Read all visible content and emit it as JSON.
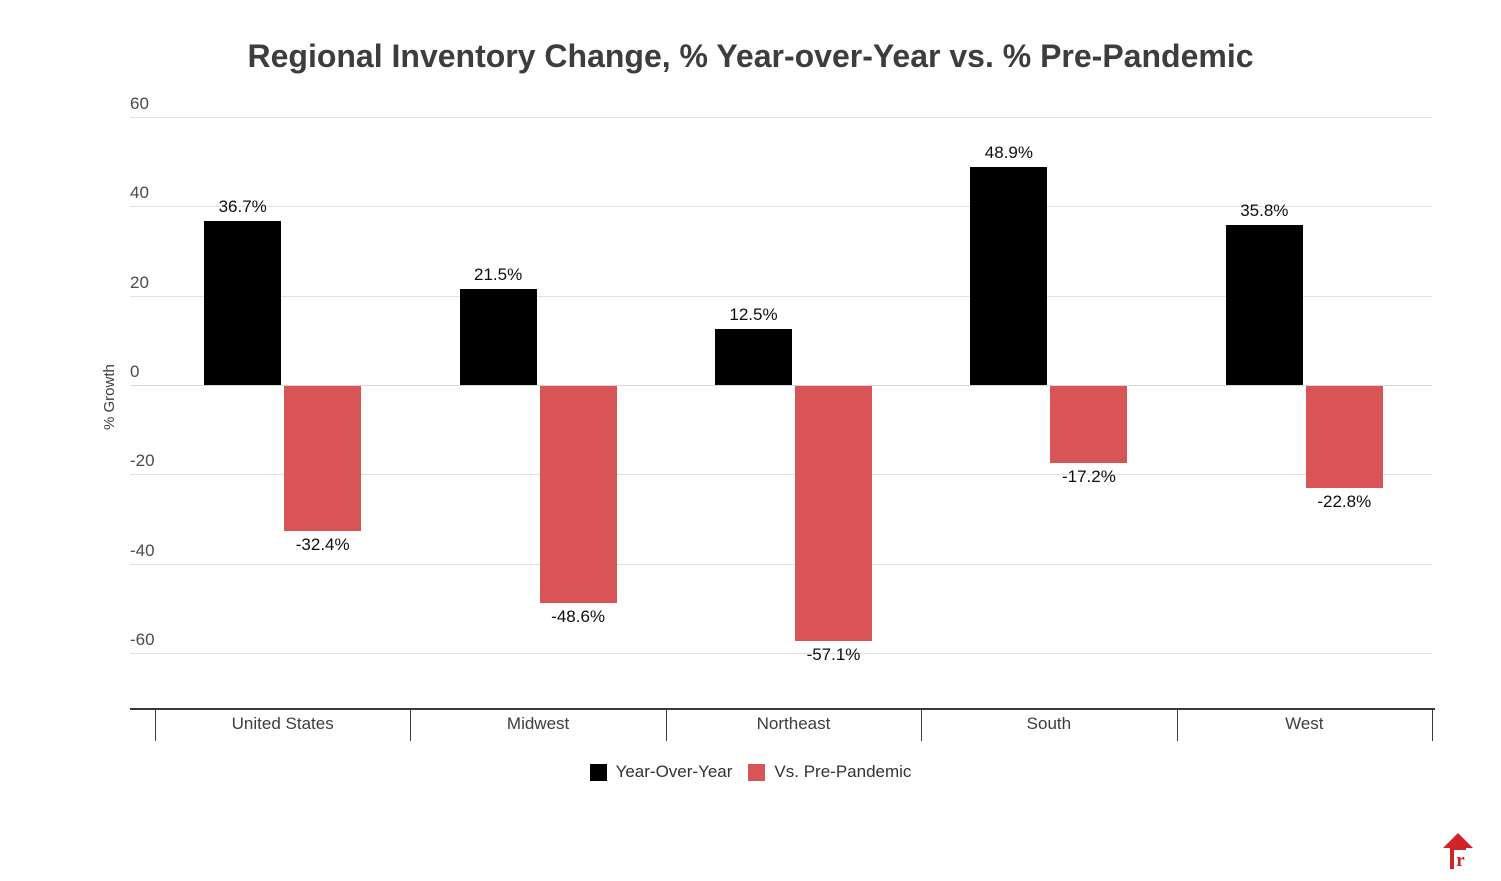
{
  "chart_data": {
    "type": "bar",
    "title": "Regional Inventory Change, % Year-over-Year vs. % Pre-Pandemic",
    "xlabel": "",
    "ylabel": "% Growth",
    "categories": [
      "United States",
      "Midwest",
      "Northeast",
      "South",
      "West"
    ],
    "series": [
      {
        "name": "Year-Over-Year",
        "color": "#000000",
        "values": [
          36.7,
          21.5,
          12.5,
          48.9,
          35.8
        ],
        "labels": [
          "36.7%",
          "21.5%",
          "12.5%",
          "48.9%",
          "35.8%"
        ]
      },
      {
        "name": "Vs. Pre-Pandemic",
        "color": "#d85456",
        "values": [
          -32.4,
          -48.6,
          -57.1,
          -17.2,
          -22.8
        ],
        "labels": [
          "-32.4%",
          "-48.6%",
          "-57.1%",
          "-17.2%",
          "-22.8%"
        ]
      }
    ],
    "y_ticks": [
      60,
      40,
      20,
      0,
      -20,
      -40,
      -60
    ],
    "ylim": [
      -65,
      62
    ],
    "grid": "horizontal-major",
    "legend_position": "bottom-center"
  },
  "branding": {
    "logo_icon": "realtor-house-icon",
    "logo_color": "#d2232a"
  }
}
